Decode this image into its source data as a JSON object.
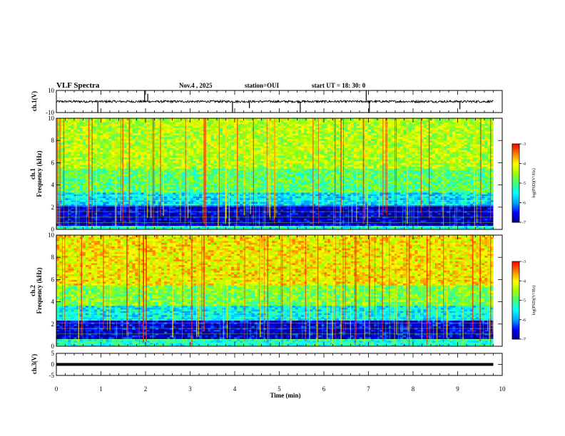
{
  "header": {
    "title": "VLF Spectra",
    "date": "Nov.4 , 2025",
    "station": "station=OUI",
    "start": "start UT =  18: 30: 0"
  },
  "colors": {
    "colormap": [
      "#000080",
      "#0000ff",
      "#00a0ff",
      "#00ffff",
      "#40ff80",
      "#a0ff00",
      "#ffff00",
      "#ff8000",
      "#ff0000",
      "#ffffff"
    ]
  },
  "chart_data": [
    {
      "type": "line",
      "name": "ch1-waveform",
      "ylabel": "ch.1(V)",
      "ylim": [
        -10,
        10
      ],
      "yticks": [
        "10",
        "-10"
      ],
      "xlim": [
        0,
        10
      ],
      "baseline": 0,
      "noise_amplitude": 1,
      "x_end": 9.8,
      "spikes": [
        {
          "t": 0.93,
          "v": -10
        },
        {
          "t": 1.98,
          "v": 10
        },
        {
          "t": 2.05,
          "v": 7
        },
        {
          "t": 3.95,
          "v": -10
        },
        {
          "t": 4.33,
          "v": -6
        },
        {
          "t": 5.47,
          "v": -10
        },
        {
          "t": 6.95,
          "v": 10
        },
        {
          "t": 7.02,
          "v": -10
        },
        {
          "t": 9.05,
          "v": -7
        }
      ]
    },
    {
      "type": "heatmap",
      "name": "ch1-spectrogram",
      "ylabel": "ch.1\nFrequency (kHz)",
      "xlim": [
        0,
        10
      ],
      "x_end": 9.8,
      "ylim": [
        0,
        10
      ],
      "yticks": [
        "0",
        "2",
        "4",
        "6",
        "8",
        "10"
      ],
      "value_range": [
        -7,
        -3
      ],
      "colorbar_label": "log(PSD)(V²/Hz)",
      "colorbar_ticks": [
        "-3",
        "-4",
        "-5",
        "-6",
        "-7"
      ],
      "bands_khz": [
        [
          0,
          0.4,
          -5.3
        ],
        [
          0.4,
          2.2,
          -6.8
        ],
        [
          2.2,
          3.3,
          -5.6
        ],
        [
          3.3,
          5.5,
          -4.9
        ],
        [
          5.5,
          10,
          -4.4
        ]
      ]
    },
    {
      "type": "heatmap",
      "name": "ch2-spectrogram",
      "ylabel": "ch.2\nFrequency (kHz)",
      "xlim": [
        0,
        10
      ],
      "x_end": 9.8,
      "ylim": [
        0,
        10
      ],
      "yticks": [
        "0",
        "2",
        "4",
        "6",
        "8",
        "10"
      ],
      "value_range": [
        -7,
        -3
      ],
      "colorbar_label": "log(PSD)(V²/Hz)",
      "colorbar_ticks": [
        "-3",
        "-4",
        "-5",
        "-6",
        "-7"
      ],
      "bands_khz": [
        [
          0,
          0.6,
          -5.3
        ],
        [
          0.6,
          2.4,
          -6.7
        ],
        [
          2.4,
          3.6,
          -5.5
        ],
        [
          3.6,
          5.5,
          -4.7
        ],
        [
          5.5,
          10,
          -4.0
        ]
      ]
    },
    {
      "type": "line",
      "name": "ch3-waveform",
      "ylabel": "ch.3(V)",
      "ylim": [
        -5,
        5
      ],
      "yticks": [
        "5",
        "0",
        "-5"
      ],
      "xlim": [
        0,
        10
      ],
      "x_end": 9.8,
      "baseline": 0
    }
  ],
  "xaxis": {
    "label": "Time (min)",
    "ticks": [
      "0",
      "1",
      "2",
      "3",
      "4",
      "5",
      "6",
      "7",
      "8",
      "9",
      "10"
    ]
  }
}
